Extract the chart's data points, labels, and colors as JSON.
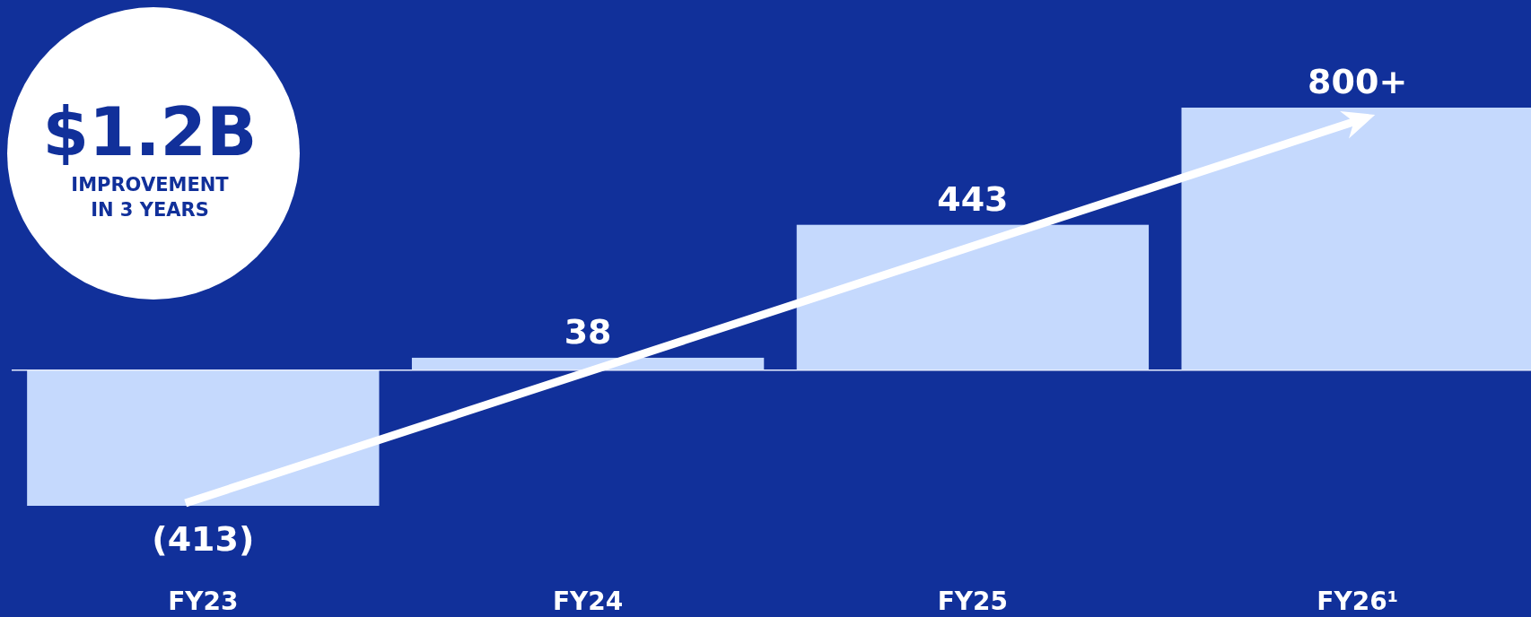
{
  "chart_data": {
    "type": "bar",
    "categories": [
      "FY23",
      "FY24",
      "FY25",
      "FY26¹"
    ],
    "values": [
      -413,
      38,
      443,
      800
    ],
    "value_labels": [
      "(413)",
      "38",
      "443",
      "800+"
    ],
    "color": "#c5d9fd",
    "annotations": [
      "$1.2B",
      "IMPROVEMENT IN 3 YEARS"
    ]
  }
}
